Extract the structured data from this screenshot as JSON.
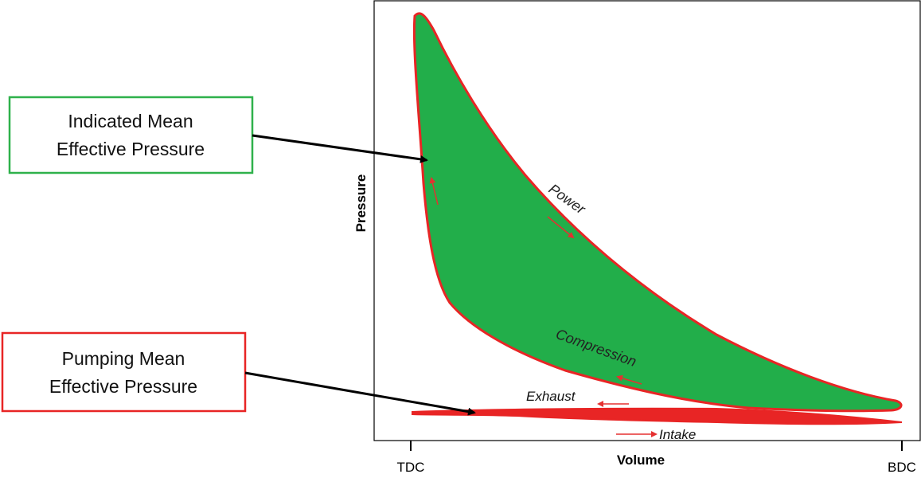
{
  "axes": {
    "x_label": "Volume",
    "y_label": "Pressure",
    "x_ticks": [
      "TDC",
      "BDC"
    ]
  },
  "callouts": [
    {
      "lines": [
        "Indicated Mean",
        "Effective Pressure"
      ]
    },
    {
      "lines": [
        "Pumping Mean",
        "Effective Pressure"
      ]
    }
  ],
  "strokes": {
    "power": "Power",
    "compression": "Compression",
    "exhaust": "Exhaust",
    "intake": "Intake"
  }
}
